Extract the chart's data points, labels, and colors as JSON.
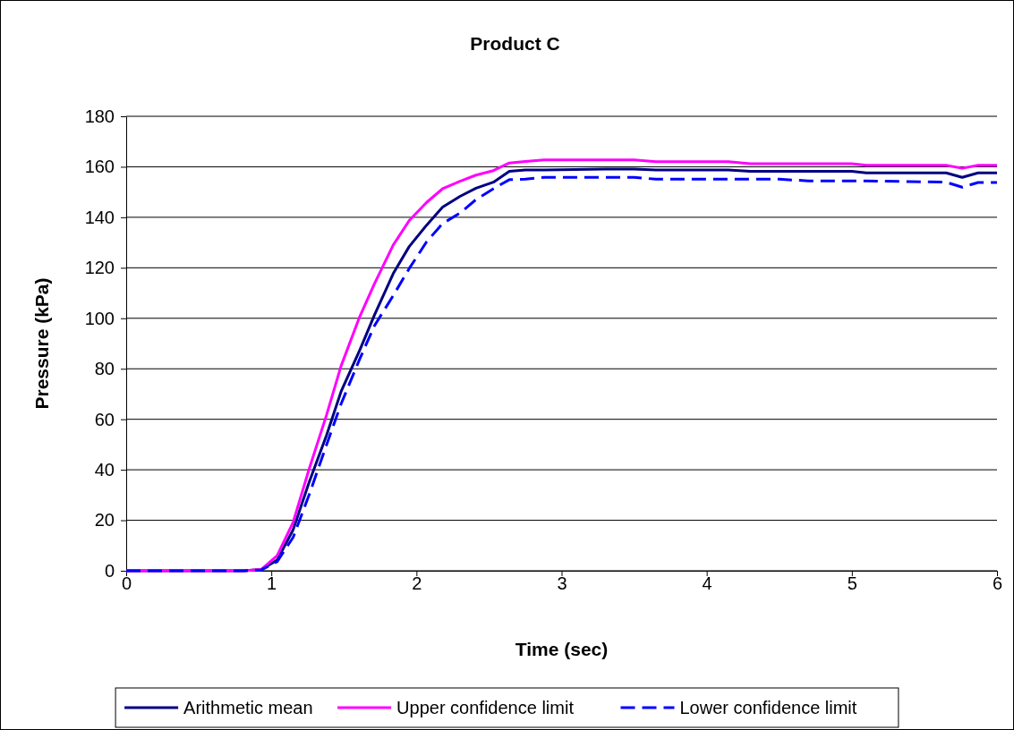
{
  "chart_data": {
    "type": "line",
    "title": "Product C",
    "xlabel": "Time (sec)",
    "ylabel": "Pressure (kPa)",
    "x": [
      0,
      0.81,
      0.93,
      1.04,
      1.15,
      1.26,
      1.38,
      1.48,
      1.61,
      1.71,
      1.84,
      1.95,
      2.07,
      2.18,
      2.3,
      2.41,
      2.53,
      2.64,
      2.75,
      2.88,
      3.3,
      3.5,
      3.65,
      4.15,
      4.3,
      4.5,
      4.7,
      5.0,
      5.1,
      5.65,
      5.76,
      5.87,
      6.0
    ],
    "series": [
      {
        "name": "Arithmetic mean",
        "color": "#000080",
        "line_style": "solid",
        "values": [
          0,
          0,
          0.5,
          4.2,
          16.2,
          35,
          53.6,
          70.9,
          87.5,
          101.2,
          117.7,
          128.4,
          136.9,
          144,
          148.3,
          151.5,
          153.9,
          158.2,
          158.7,
          158.7,
          159.1,
          159.1,
          158.7,
          158.7,
          158.2,
          158.2,
          158.2,
          158.2,
          157.6,
          157.6,
          155.8,
          157.6,
          157.6
        ]
      },
      {
        "name": "Upper confidence limit",
        "color": "#ff00ff",
        "line_style": "solid",
        "values": [
          0,
          0,
          0.5,
          6,
          19.2,
          40.2,
          61.6,
          81,
          100.8,
          113.6,
          129,
          138.7,
          145.9,
          151.3,
          154.3,
          156.7,
          158.5,
          161.5,
          162.1,
          162.7,
          162.7,
          162.7,
          162,
          162,
          161.2,
          161.2,
          161.2,
          161.2,
          160.6,
          160.6,
          159.4,
          160.6,
          160.6
        ]
      },
      {
        "name": "Lower confidence limit",
        "color": "#0000ff",
        "line_style": "dashed",
        "values": [
          0,
          0,
          0.3,
          3.6,
          13.2,
          30,
          49.8,
          66,
          84,
          97,
          109,
          119.7,
          130.3,
          137.5,
          141.7,
          147,
          151.3,
          154.9,
          155.1,
          155.8,
          155.8,
          155.8,
          155.1,
          155.1,
          155.1,
          155.1,
          154.4,
          154.4,
          154.4,
          153.9,
          151.9,
          153.8,
          153.8
        ]
      }
    ],
    "xlim": [
      0,
      6
    ],
    "xticks": [
      0,
      1,
      2,
      3,
      4,
      5,
      6
    ],
    "ylim": [
      0,
      180
    ],
    "yticks": [
      0,
      20,
      40,
      60,
      80,
      100,
      120,
      140,
      160,
      180
    ],
    "grid": "y",
    "legend": "bottom",
    "marker": "none"
  }
}
